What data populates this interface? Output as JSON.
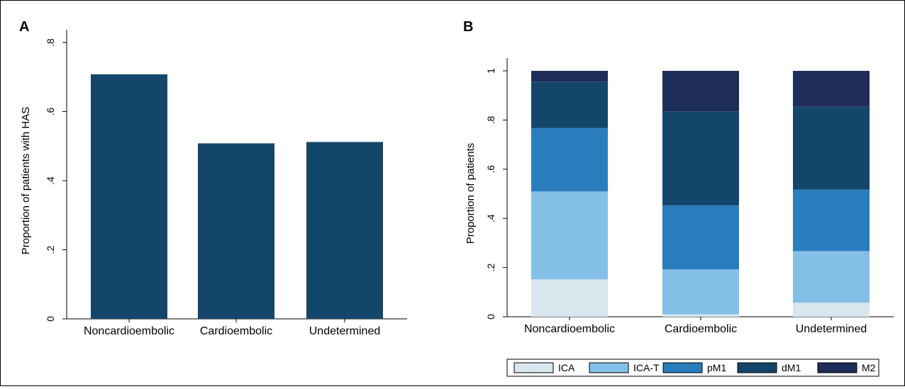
{
  "figure": {
    "panel_a_letter": "A",
    "panel_b_letter": "B"
  },
  "chart_data": [
    {
      "panel": "A",
      "type": "bar",
      "title": "",
      "xlabel": "",
      "ylabel": "Proportion of patients with HAS",
      "categories": [
        "Noncardioembolic",
        "Cardioembolic",
        "Undetermined"
      ],
      "values": [
        0.708,
        0.508,
        0.512
      ],
      "ylim": [
        0,
        0.8
      ],
      "yticks": [
        0,
        0.2,
        0.4,
        0.6,
        0.8
      ],
      "ytick_labels": [
        "0",
        ".2",
        ".4",
        ".6",
        ".8"
      ],
      "grid": false,
      "color": "#14466b"
    },
    {
      "panel": "B",
      "type": "bar",
      "stacked": true,
      "title": "",
      "xlabel": "",
      "ylabel": "Proportion of patients",
      "categories": [
        "Noncardioembolic",
        "Cardioembolic",
        "Undetermined"
      ],
      "ylim": [
        0,
        1
      ],
      "yticks": [
        0,
        0.2,
        0.4,
        0.6,
        0.8,
        1
      ],
      "ytick_labels": [
        "0",
        ".2",
        ".4",
        ".6",
        ".8",
        "1"
      ],
      "grid": false,
      "legend_position": "bottom",
      "series": [
        {
          "name": "ICA",
          "color": "#d9e6ee",
          "values": [
            0.152,
            0.01,
            0.057
          ]
        },
        {
          "name": "ICA-T",
          "color": "#84bfe8",
          "values": [
            0.358,
            0.183,
            0.21
          ]
        },
        {
          "name": "pM1",
          "color": "#2a7dbd",
          "values": [
            0.258,
            0.26,
            0.25
          ]
        },
        {
          "name": "dM1",
          "color": "#14466b",
          "values": [
            0.188,
            0.382,
            0.338
          ]
        },
        {
          "name": "M2",
          "color": "#1e2d57",
          "values": [
            0.044,
            0.165,
            0.145
          ]
        }
      ]
    }
  ]
}
